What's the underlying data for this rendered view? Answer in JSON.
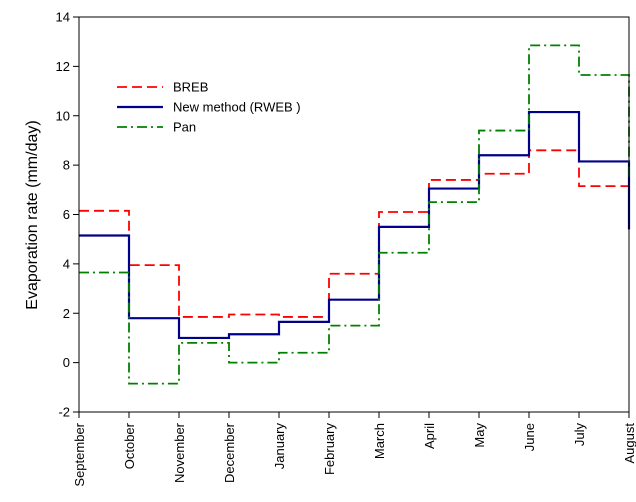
{
  "chart_data": {
    "type": "line",
    "step": "post",
    "title": "",
    "xlabel": "",
    "ylabel": "Evaporation rate (mm/day)",
    "ylim": [
      -2,
      14
    ],
    "yticks": [
      -2,
      0,
      2,
      4,
      6,
      8,
      10,
      12,
      14
    ],
    "grid": false,
    "legend_position": "top-left",
    "categories": [
      "September",
      "October",
      "November",
      "December",
      "January",
      "February",
      "March",
      "April",
      "May",
      "June",
      "July",
      "August"
    ],
    "series": [
      {
        "name": "BREB",
        "color": "#ff0000",
        "dash": "dashed",
        "values": [
          6.15,
          3.95,
          1.85,
          1.95,
          1.85,
          3.6,
          6.1,
          7.4,
          7.65,
          8.6,
          7.15,
          5.8
        ]
      },
      {
        "name": "New method (RWEB )",
        "color": "#00008b",
        "dash": "solid",
        "values": [
          5.15,
          1.8,
          1.0,
          1.15,
          1.65,
          2.55,
          5.5,
          7.05,
          8.4,
          10.15,
          8.15,
          5.4
        ]
      },
      {
        "name": "Pan",
        "color": "#008000",
        "dash": "dashdot",
        "values": [
          3.65,
          -0.85,
          0.8,
          0.0,
          0.4,
          1.5,
          4.45,
          6.5,
          9.4,
          12.85,
          11.65,
          7.5
        ]
      }
    ]
  }
}
